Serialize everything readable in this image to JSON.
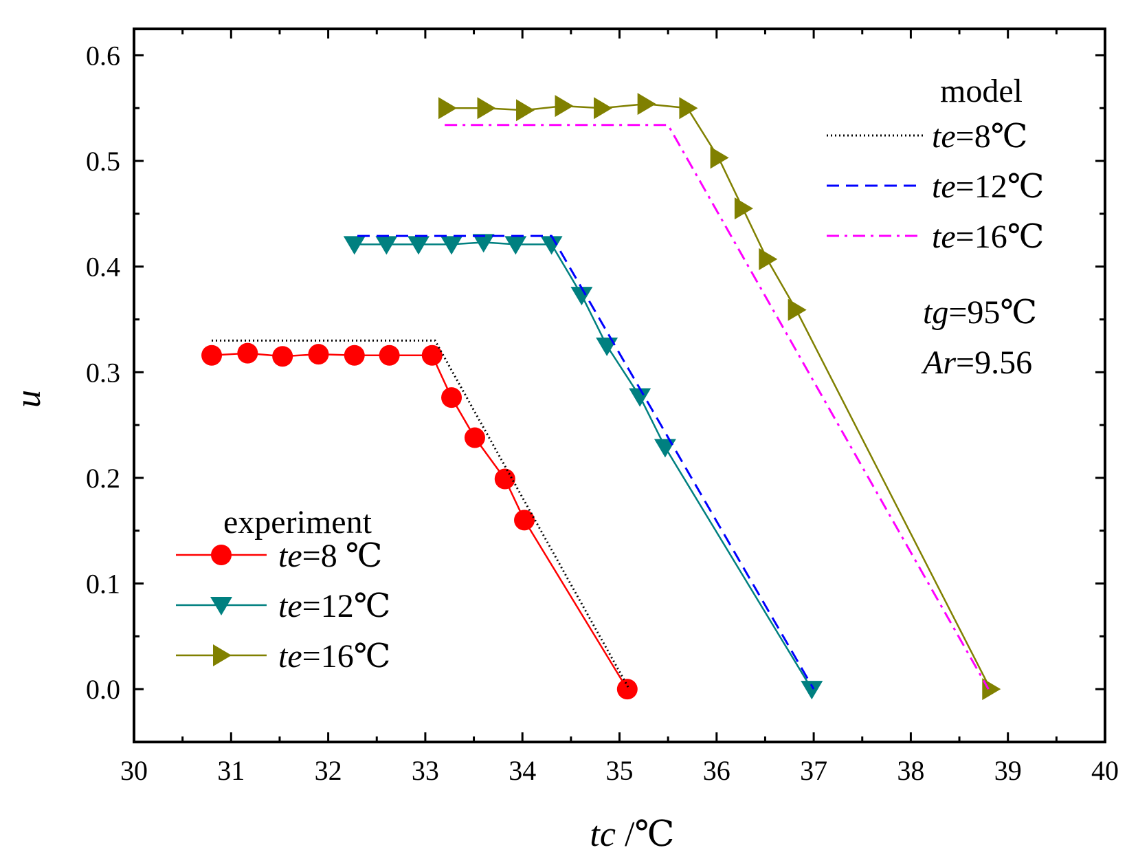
{
  "chart_data": {
    "type": "line",
    "xlabel": {
      "var": "tc",
      "unit": " /℃"
    },
    "ylabel": "u",
    "xlim": [
      30,
      40
    ],
    "ylim": [
      -0.05,
      0.625
    ],
    "xticks": [
      "30",
      "31",
      "32",
      "33",
      "34",
      "35",
      "36",
      "37",
      "38",
      "39",
      "40"
    ],
    "yticks": [
      "0.0",
      "0.1",
      "0.2",
      "0.3",
      "0.4",
      "0.5",
      "0.6"
    ],
    "xtick_values": [
      30,
      31,
      32,
      33,
      34,
      35,
      36,
      37,
      38,
      39,
      40
    ],
    "ytick_values": [
      0,
      0.1,
      0.2,
      0.3,
      0.4,
      0.5,
      0.6
    ],
    "experiment_title": "experiment",
    "model_title": "model",
    "series": [
      {
        "name": "te=8 ℃",
        "kind": "experiment",
        "var": "te",
        "label": "=8 ℃",
        "color": "#ff0000",
        "marker": "circle",
        "x": [
          30.8,
          31.17,
          31.53,
          31.9,
          32.27,
          32.63,
          33.07,
          33.27,
          33.51,
          33.82,
          34.02,
          35.08
        ],
        "y": [
          0.316,
          0.318,
          0.315,
          0.317,
          0.316,
          0.316,
          0.316,
          0.276,
          0.238,
          0.199,
          0.16,
          0.0
        ]
      },
      {
        "name": "te=12℃",
        "kind": "experiment",
        "var": "te",
        "label": "=12℃",
        "color": "#008080",
        "marker": "triangle-down",
        "x": [
          32.27,
          32.6,
          32.93,
          33.27,
          33.6,
          33.93,
          34.3,
          34.61,
          34.87,
          35.21,
          35.47,
          36.98
        ],
        "y": [
          0.421,
          0.421,
          0.421,
          0.421,
          0.423,
          0.421,
          0.421,
          0.373,
          0.325,
          0.277,
          0.229,
          0.0
        ]
      },
      {
        "name": "te=16℃",
        "kind": "experiment",
        "var": "te",
        "label": "=16℃",
        "color": "#808000",
        "marker": "triangle-right",
        "x": [
          33.22,
          33.62,
          34.02,
          34.42,
          34.82,
          35.27,
          35.7,
          36.02,
          36.27,
          36.52,
          36.82,
          38.82
        ],
        "y": [
          0.55,
          0.55,
          0.548,
          0.552,
          0.55,
          0.554,
          0.55,
          0.503,
          0.455,
          0.407,
          0.359,
          0.0
        ]
      },
      {
        "name": "te=8℃",
        "kind": "model",
        "var": "te",
        "label": "=8℃",
        "color": "#000000",
        "dash": "2,4",
        "x": [
          30.8,
          33.1,
          35.1
        ],
        "y": [
          0.33,
          0.33,
          0.0
        ]
      },
      {
        "name": "te=12℃",
        "kind": "model",
        "var": "te",
        "label": "=12℃",
        "color": "#0000ff",
        "dash": "18,10",
        "x": [
          32.3,
          34.3,
          37.0
        ],
        "y": [
          0.429,
          0.429,
          0.0
        ]
      },
      {
        "name": "te=16℃",
        "kind": "model",
        "var": "te",
        "label": "=16℃",
        "color": "#ff00ff",
        "dash": "18,8,4,8",
        "x": [
          33.2,
          35.5,
          38.8
        ],
        "y": [
          0.534,
          0.534,
          0.0
        ]
      }
    ],
    "annotations": [
      {
        "var": "tg",
        "text": "=95℃"
      },
      {
        "var": "Ar",
        "text": "=9.56"
      }
    ]
  }
}
